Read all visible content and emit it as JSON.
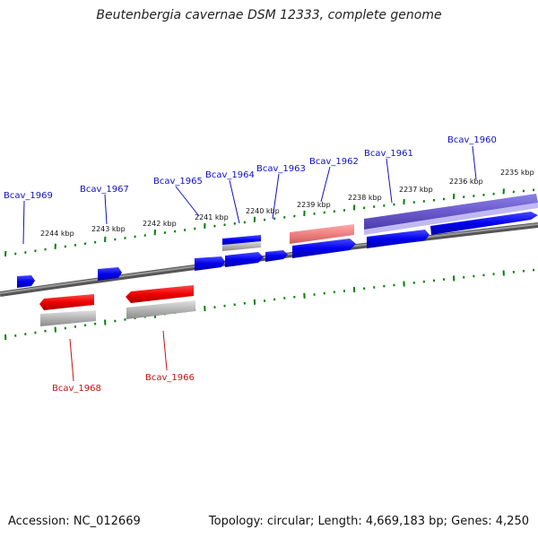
{
  "title": "Beutenbergia cavernae DSM 12333, complete genome",
  "footer": {
    "accession": "Accession: NC_012669",
    "summary": "Topology: circular; Length: 4,669,183 bp; Genes: 4,250"
  },
  "colors": {
    "forward_gene": "#0000ee",
    "reverse_gene": "#ee0000",
    "selected_forward": "#6a5acd",
    "pink_forward": "#f08080",
    "backbone": "#777777",
    "tick": "#008000",
    "label_forward": "#1010c8",
    "label_reverse": "#c81010"
  },
  "kbp_labels": [
    {
      "text": "2235 kbp"
    },
    {
      "text": "2236 kbp"
    },
    {
      "text": "2237 kbp"
    },
    {
      "text": "2238 kbp"
    },
    {
      "text": "2239 kbp"
    },
    {
      "text": "2240 kbp"
    },
    {
      "text": "2241 kbp"
    },
    {
      "text": "2242 kbp"
    },
    {
      "text": "2243 kbp"
    },
    {
      "text": "2244 kbp"
    }
  ],
  "gene_labels": [
    {
      "text": "Bcav_1960",
      "strand": "forward"
    },
    {
      "text": "Bcav_1961",
      "strand": "forward"
    },
    {
      "text": "Bcav_1962",
      "strand": "forward"
    },
    {
      "text": "Bcav_1963",
      "strand": "forward"
    },
    {
      "text": "Bcav_1964",
      "strand": "forward"
    },
    {
      "text": "Bcav_1965",
      "strand": "forward"
    },
    {
      "text": "Bcav_1967",
      "strand": "forward"
    },
    {
      "text": "Bcav_1969",
      "strand": "forward"
    },
    {
      "text": "Bcav_1966",
      "strand": "reverse"
    },
    {
      "text": "Bcav_1968",
      "strand": "reverse"
    }
  ]
}
